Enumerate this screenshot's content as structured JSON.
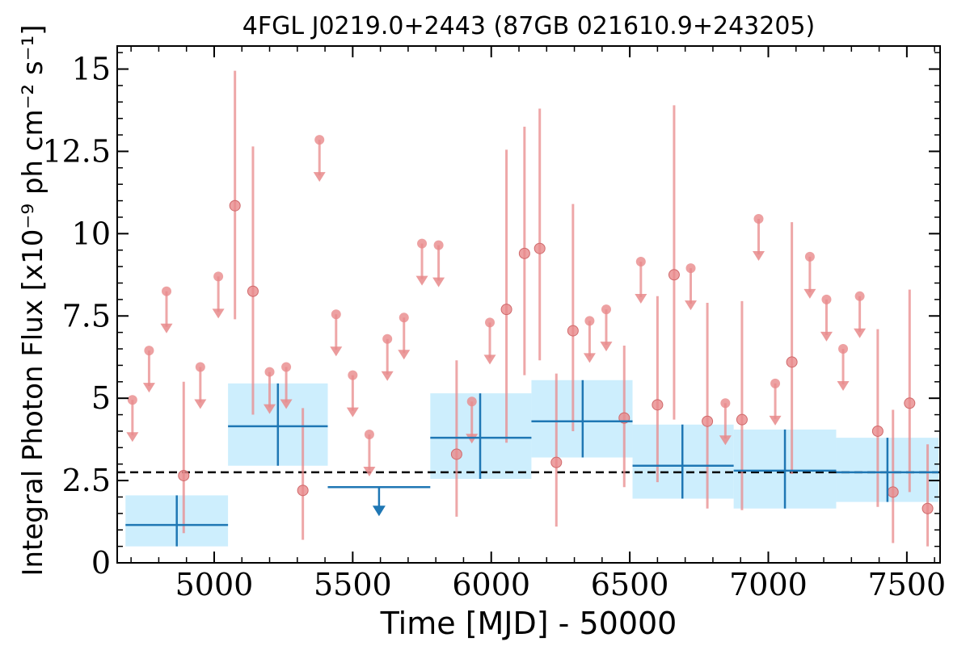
{
  "chart_data": {
    "type": "scatter",
    "title": "4FGL J0219.0+2443 (87GB 021610.9+243205)",
    "xlabel": "Time [MJD] - 50000",
    "ylabel": "Integral Photon Flux [x10⁻⁹ ph cm⁻² s⁻¹]",
    "xlim": [
      4650,
      7620
    ],
    "ylim": [
      0,
      15.7
    ],
    "x_ticks": [
      5000,
      5500,
      6000,
      6500,
      7000,
      7500
    ],
    "x_tick_labels": [
      "5000",
      "5500",
      "6000",
      "6500",
      "7000",
      "7500"
    ],
    "y_ticks": [
      0,
      2.5,
      5,
      7.5,
      10,
      12.5,
      15
    ],
    "y_tick_labels": [
      "0",
      "2.5",
      "5",
      "7.5",
      "10",
      "12.5",
      "15"
    ],
    "grid": false,
    "legend": "none",
    "colors": {
      "short_bins": "#e8898b",
      "long_bins": "#1f77b4",
      "long_bins_band": "#cdeefd",
      "mean_line": "#000000"
    },
    "mean_flux": 2.75,
    "short_bin_detections": [
      {
        "x": 4890,
        "y": 2.65,
        "ylo": 0.9,
        "yhi": 5.5
      },
      {
        "x": 5075,
        "y": 10.85,
        "ylo": 7.4,
        "yhi": 14.95
      },
      {
        "x": 5140,
        "y": 8.25,
        "ylo": 4.5,
        "yhi": 12.65
      },
      {
        "x": 5320,
        "y": 2.2,
        "ylo": 0.7,
        "yhi": 4.7
      },
      {
        "x": 5875,
        "y": 3.3,
        "ylo": 1.4,
        "yhi": 6.15
      },
      {
        "x": 6055,
        "y": 7.7,
        "ylo": 3.65,
        "yhi": 12.55
      },
      {
        "x": 6120,
        "y": 9.4,
        "ylo": 5.7,
        "yhi": 13.25
      },
      {
        "x": 6175,
        "y": 9.55,
        "ylo": 6.15,
        "yhi": 13.8
      },
      {
        "x": 6235,
        "y": 3.05,
        "ylo": 1.1,
        "yhi": 5.75
      },
      {
        "x": 6295,
        "y": 7.05,
        "ylo": 4.0,
        "yhi": 10.9
      },
      {
        "x": 6480,
        "y": 4.4,
        "ylo": 2.3,
        "yhi": 6.6
      },
      {
        "x": 6600,
        "y": 4.8,
        "ylo": 2.45,
        "yhi": 8.1
      },
      {
        "x": 6660,
        "y": 8.75,
        "ylo": 4.35,
        "yhi": 13.9
      },
      {
        "x": 6780,
        "y": 4.3,
        "ylo": 1.65,
        "yhi": 7.9
      },
      {
        "x": 6905,
        "y": 4.35,
        "ylo": 1.6,
        "yhi": 7.95
      },
      {
        "x": 7085,
        "y": 6.1,
        "ylo": 2.7,
        "yhi": 10.35
      },
      {
        "x": 7395,
        "y": 4.0,
        "ylo": 1.7,
        "yhi": 7.1
      },
      {
        "x": 7450,
        "y": 2.15,
        "ylo": 0.6,
        "yhi": 4.65
      },
      {
        "x": 7510,
        "y": 4.85,
        "ylo": 2.15,
        "yhi": 8.3
      },
      {
        "x": 7575,
        "y": 1.65,
        "ylo": 0.5,
        "yhi": 3.6
      }
    ],
    "short_bin_upper_limits": [
      {
        "x": 4705,
        "y": 4.95
      },
      {
        "x": 4765,
        "y": 6.45
      },
      {
        "x": 4828,
        "y": 8.25
      },
      {
        "x": 4950,
        "y": 5.95
      },
      {
        "x": 5015,
        "y": 8.7
      },
      {
        "x": 5200,
        "y": 5.8
      },
      {
        "x": 5260,
        "y": 5.95
      },
      {
        "x": 5380,
        "y": 12.85
      },
      {
        "x": 5440,
        "y": 7.55
      },
      {
        "x": 5500,
        "y": 5.7
      },
      {
        "x": 5560,
        "y": 3.9
      },
      {
        "x": 5625,
        "y": 6.8
      },
      {
        "x": 5685,
        "y": 7.45
      },
      {
        "x": 5750,
        "y": 9.7
      },
      {
        "x": 5810,
        "y": 9.65
      },
      {
        "x": 5930,
        "y": 4.9
      },
      {
        "x": 5995,
        "y": 7.3
      },
      {
        "x": 6355,
        "y": 7.35
      },
      {
        "x": 6415,
        "y": 7.7
      },
      {
        "x": 6540,
        "y": 9.15
      },
      {
        "x": 6720,
        "y": 8.95
      },
      {
        "x": 6845,
        "y": 4.85
      },
      {
        "x": 6965,
        "y": 10.45
      },
      {
        "x": 7025,
        "y": 5.45
      },
      {
        "x": 7150,
        "y": 9.3
      },
      {
        "x": 7210,
        "y": 8.0
      },
      {
        "x": 7270,
        "y": 6.5
      },
      {
        "x": 7330,
        "y": 8.1
      }
    ],
    "long_bin_detections": [
      {
        "x0": 4680,
        "x1": 5050,
        "xc": 4865,
        "y": 1.15,
        "ylo": 0.5,
        "yhi": 2.05
      },
      {
        "x0": 5050,
        "x1": 5410,
        "xc": 5230,
        "y": 4.15,
        "ylo": 2.95,
        "yhi": 5.45
      },
      {
        "x0": 5780,
        "x1": 6145,
        "xc": 5960,
        "y": 3.8,
        "ylo": 2.55,
        "yhi": 5.15
      },
      {
        "x0": 6145,
        "x1": 6510,
        "xc": 6330,
        "y": 4.3,
        "ylo": 3.2,
        "yhi": 5.55
      },
      {
        "x0": 6510,
        "x1": 6875,
        "xc": 6690,
        "y": 2.95,
        "ylo": 1.95,
        "yhi": 4.2
      },
      {
        "x0": 6875,
        "x1": 7245,
        "xc": 7060,
        "y": 2.8,
        "ylo": 1.65,
        "yhi": 4.05
      },
      {
        "x0": 7245,
        "x1": 7615,
        "xc": 7430,
        "y": 2.75,
        "ylo": 1.85,
        "yhi": 3.8
      }
    ],
    "long_bin_upper_limits": [
      {
        "x0": 5410,
        "x1": 5780,
        "xc": 5595,
        "y": 2.3
      }
    ]
  }
}
